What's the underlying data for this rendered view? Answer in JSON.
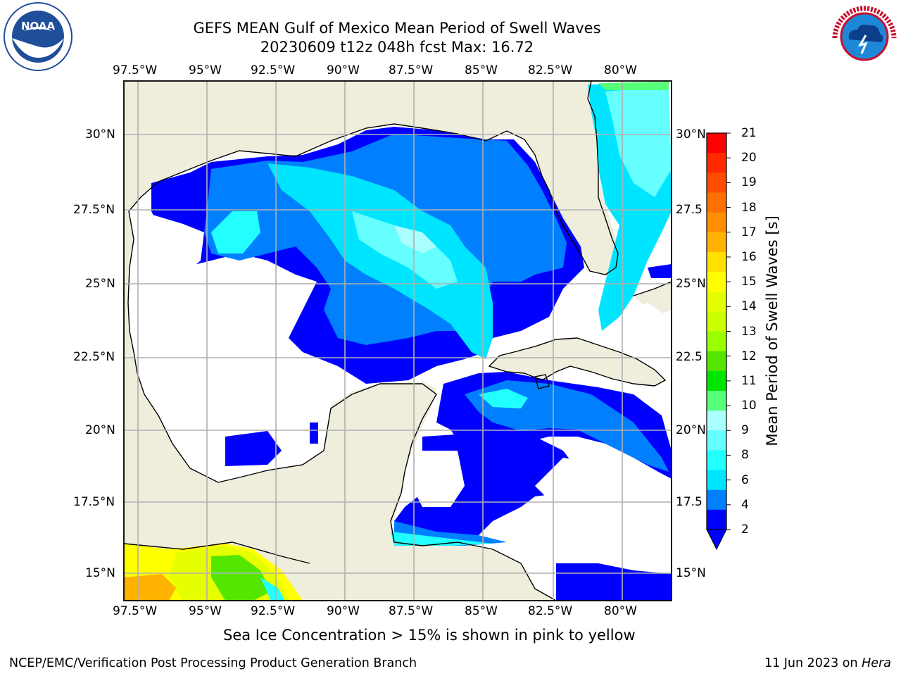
{
  "header": {
    "title_line1": "GEFS MEAN Gulf of Mexico Mean Period of Swell Waves",
    "title_line2": "20230609 t12z 048h fcst   Max: 16.72"
  },
  "logos": {
    "left": "noaa-logo",
    "right": "nws-logo",
    "noaa_text": "NOAA",
    "noaa_ring_text": "NATIONAL OCEANIC AND ATMOSPHERIC ADMINISTRATION · U.S. DEPARTMENT OF COMMERCE",
    "nws_ring_text": "NATIONAL WEATHER SERVICE"
  },
  "map": {
    "lon_labels": [
      "97.5°W",
      "95°W",
      "92.5°W",
      "90°W",
      "87.5°W",
      "85°W",
      "82.5°W",
      "80°W"
    ],
    "lat_labels_left": [
      "30°N",
      "27.5°N",
      "25°N",
      "22.5°N",
      "20°N",
      "17.5°N",
      "15°N"
    ],
    "lat_labels_right": [
      "30°N",
      "27.5",
      "25°N",
      "22.5",
      "20°N",
      "17.5",
      "15°N"
    ],
    "land_color": "#efeddc",
    "ocean_color": "#ffffff",
    "grid_color": "#b0b0b0"
  },
  "colorbar": {
    "title": "Mean Period of Swell Waves [s]",
    "ticks": [
      "21",
      "20",
      "19",
      "18",
      "17",
      "16",
      "15",
      "14",
      "13",
      "12",
      "11",
      "10",
      "9",
      "8",
      "7",
      "6",
      "5",
      "4",
      "3",
      "2"
    ],
    "tick_labels": [
      "21",
      "20",
      "19",
      "18",
      "17",
      "16",
      "15",
      "14",
      "13",
      "12",
      "11",
      "10",
      "9",
      "8",
      "6",
      "4",
      "2"
    ],
    "colors": [
      "#ff0000",
      "#ff2000",
      "#ff4500",
      "#ff6a00",
      "#ff8c00",
      "#ffb000",
      "#ffd800",
      "#fff000",
      "#f0ff00",
      "#d4ff00",
      "#b0ff00",
      "#60ff00",
      "#00e600",
      "#00ff40",
      "#50ff80",
      "#9fffff",
      "#60ffff",
      "#20ffff",
      "#00ffff",
      "#0080ff",
      "#0000ff"
    ],
    "legend_colors_top_to_bottom": [
      "#ff0000",
      "#ff2a00",
      "#ff4d00",
      "#ff7000",
      "#ff8f00",
      "#ffb200",
      "#ffe000",
      "#ffff00",
      "#e6ff00",
      "#ccff00",
      "#99ff00",
      "#55e600",
      "#00e600",
      "#55ff77",
      "#aaffff",
      "#66ffff",
      "#22ffff",
      "#00e5ff",
      "#0080ff",
      "#0000ff"
    ]
  },
  "footnote": {
    "text": "Sea Ice Concentration > 15% is shown in pink to yellow"
  },
  "footer": {
    "left": "NCEP/EMC/Verification Post Processing Product Generation Branch",
    "right_date": "11 Jun 2023 on ",
    "right_host": "Hera"
  }
}
